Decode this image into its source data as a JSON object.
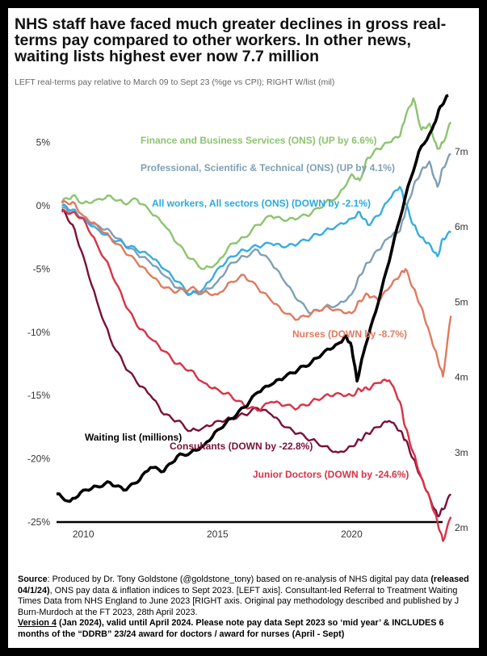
{
  "title": "NHS staff have faced much greater declines in gross real-terms pay compared to other workers. In other news, waiting lists highest ever now 7.7 million",
  "subtitle": "LEFT real-terms pay relative to March 09 to Sept 23 (%ge vs CPI); RIGHT W/list (mil)",
  "footer": {
    "source_label": "Source",
    "source_a": ": Produced by Dr. Tony Goldstone (@goldstone_tony) based on re-analysis of NHS digital pay data ",
    "source_b": "(released 04/1/24)",
    "source_c": ", ONS pay data & inflation indices to Sept 2023. [LEFT axis]. Consultant-led Referral to Treatment Waiting Times Data from NHS England to June 2023 [RIGHT axis. Original pay methodology described and published by J Burn-Murdoch at the FT 2023, 28th April 2023.",
    "version_label": "Version 4",
    "version_text": " (Jan 2024), valid until April 2024. Please note pay data Sept 2023 so ‘mid year’ & INCLUDES 6 months of the “DDRB” 23/24 award  for doctors / award for nurses (April - Sept)"
  },
  "colors": {
    "finance": "#8cc46e",
    "professional": "#7f9fb6",
    "all_workers": "#2aa9e0",
    "nurses": "#e07a5f",
    "consultants": "#7a1038",
    "junior": "#d93245",
    "waiting": "#000000"
  },
  "chart_data": {
    "type": "line",
    "title": "NHS staff have faced much greater declines in gross real-terms pay compared to other workers. In other news, waiting lists highest ever now 7.7 million",
    "x_ticks": [
      2010,
      2015,
      2020
    ],
    "xlim": [
      2009.0,
      2023.75
    ],
    "left_axis": {
      "label": "LEFT real-terms pay relative to March 09 to Sept 23 (%ge vs CPI)",
      "ylim": [
        -25,
        8
      ],
      "ticks": [
        5,
        0,
        -5,
        -10,
        -15,
        -20,
        -25
      ],
      "tick_labels": [
        "5%",
        "0%",
        "-5%",
        "-10%",
        "-15%",
        "-20%",
        "-25%"
      ]
    },
    "right_axis": {
      "label": "RIGHT W/list (mil)",
      "ylim": [
        1.95,
        8.1
      ],
      "ticks": [
        7,
        6,
        5,
        4,
        3,
        2
      ],
      "tick_labels": [
        "7m",
        "6m",
        "5m",
        "4m",
        "3m",
        "2m"
      ]
    },
    "series": [
      {
        "key": "finance",
        "name": "Finance and Business Services (ONS)",
        "label": "Finance and Business Services (ONS) (UP by 6.6%)",
        "axis": "left",
        "x": [
          2009.2,
          2009.6,
          2010.0,
          2010.5,
          2011.0,
          2011.5,
          2012.0,
          2012.5,
          2013.0,
          2013.5,
          2014.0,
          2014.5,
          2015.0,
          2015.5,
          2016.0,
          2016.5,
          2017.0,
          2017.5,
          2018.0,
          2018.5,
          2019.0,
          2019.5,
          2020.0,
          2020.3,
          2020.6,
          2021.0,
          2021.4,
          2021.8,
          2022.0,
          2022.3,
          2022.6,
          2022.9,
          2023.2,
          2023.4,
          2023.7
        ],
        "y": [
          0.3,
          0.8,
          0.2,
          0.5,
          0.8,
          0.2,
          0.5,
          -0.5,
          -1.5,
          -3.0,
          -4.2,
          -5.0,
          -4.5,
          -3.0,
          -2.5,
          -1.5,
          -0.8,
          -1.2,
          -1.0,
          -0.6,
          0.2,
          0.8,
          2.5,
          2.0,
          3.8,
          4.5,
          5.0,
          5.5,
          7.0,
          8.5,
          6.0,
          6.5,
          4.5,
          5.0,
          6.6
        ]
      },
      {
        "key": "professional",
        "name": "Professional, Scientific & Technical (ONS)",
        "label": "Professional, Scientific & Technical (ONS) (UP by 4.1%)",
        "axis": "left",
        "x": [
          2009.2,
          2009.6,
          2010.0,
          2010.5,
          2011.0,
          2011.5,
          2012.0,
          2012.5,
          2013.0,
          2013.5,
          2014.0,
          2014.5,
          2015.0,
          2015.5,
          2016.0,
          2016.5,
          2017.0,
          2017.5,
          2018.0,
          2018.5,
          2019.0,
          2019.5,
          2020.0,
          2020.3,
          2020.6,
          2021.0,
          2021.4,
          2021.8,
          2022.0,
          2022.3,
          2022.6,
          2022.9,
          2023.2,
          2023.4,
          2023.7
        ],
        "y": [
          -0.2,
          -0.5,
          -1.0,
          -1.5,
          -2.0,
          -3.0,
          -3.8,
          -4.5,
          -5.5,
          -6.5,
          -7.0,
          -6.8,
          -6.0,
          -4.5,
          -4.0,
          -3.5,
          -4.5,
          -6.0,
          -7.5,
          -8.5,
          -8.0,
          -7.8,
          -7.0,
          -5.5,
          -4.5,
          -3.5,
          -2.5,
          -2.0,
          -0.5,
          1.5,
          2.8,
          3.5,
          1.5,
          3.0,
          4.1
        ]
      },
      {
        "key": "all_workers",
        "name": "All workers, All sectors (ONS)",
        "label": "All workers, All sectors (ONS) (DOWN by -2.1%)",
        "axis": "left",
        "x": [
          2009.2,
          2009.6,
          2010.0,
          2010.5,
          2011.0,
          2011.5,
          2012.0,
          2012.5,
          2013.0,
          2013.5,
          2014.0,
          2014.5,
          2015.0,
          2015.5,
          2016.0,
          2016.5,
          2017.0,
          2017.5,
          2018.0,
          2018.5,
          2019.0,
          2019.5,
          2020.0,
          2020.3,
          2020.6,
          2021.0,
          2021.4,
          2021.8,
          2022.0,
          2022.3,
          2022.6,
          2022.9,
          2023.2,
          2023.4,
          2023.7
        ],
        "y": [
          0.0,
          -0.3,
          -1.0,
          -1.8,
          -2.5,
          -3.0,
          -3.5,
          -4.0,
          -5.0,
          -6.0,
          -7.0,
          -6.5,
          -5.0,
          -4.0,
          -3.5,
          -3.2,
          -3.0,
          -3.3,
          -3.0,
          -2.5,
          -2.0,
          -1.5,
          -1.0,
          -0.5,
          -1.5,
          -0.8,
          0.5,
          1.5,
          0.2,
          -1.5,
          -2.5,
          -3.0,
          -4.0,
          -2.6,
          -2.1
        ]
      },
      {
        "key": "nurses",
        "name": "Nurses",
        "label": "Nurses (DOWN by -8.7%)",
        "axis": "left",
        "x": [
          2009.2,
          2009.6,
          2010.0,
          2010.5,
          2011.0,
          2011.5,
          2012.0,
          2012.5,
          2013.0,
          2013.5,
          2014.0,
          2014.5,
          2015.0,
          2015.5,
          2016.0,
          2016.5,
          2017.0,
          2017.5,
          2018.0,
          2018.5,
          2019.0,
          2019.5,
          2020.0,
          2020.3,
          2020.6,
          2021.0,
          2021.4,
          2021.8,
          2022.0,
          2022.3,
          2022.6,
          2022.9,
          2023.2,
          2023.4,
          2023.7
        ],
        "y": [
          0.2,
          0.3,
          -0.8,
          -1.5,
          -2.5,
          -3.5,
          -4.5,
          -5.5,
          -6.5,
          -6.8,
          -6.5,
          -6.8,
          -7.0,
          -6.0,
          -5.5,
          -6.5,
          -7.5,
          -8.5,
          -9.0,
          -8.5,
          -8.0,
          -8.2,
          -8.5,
          -7.5,
          -7.0,
          -7.5,
          -6.5,
          -5.5,
          -5.0,
          -6.5,
          -8.0,
          -10.0,
          -12.0,
          -13.5,
          -8.7
        ]
      },
      {
        "key": "consultants",
        "name": "Consultants",
        "label": "Consultants (DOWN by -22.8%)",
        "axis": "left",
        "x": [
          2009.2,
          2009.6,
          2010.0,
          2010.5,
          2011.0,
          2011.5,
          2012.0,
          2012.5,
          2013.0,
          2013.5,
          2014.0,
          2014.5,
          2015.0,
          2015.5,
          2016.0,
          2016.5,
          2017.0,
          2017.5,
          2018.0,
          2018.5,
          2019.0,
          2019.5,
          2020.0,
          2020.3,
          2020.6,
          2021.0,
          2021.4,
          2021.8,
          2022.0,
          2022.3,
          2022.6,
          2022.9,
          2023.2,
          2023.4,
          2023.7
        ],
        "y": [
          -0.3,
          -1.5,
          -4.0,
          -7.5,
          -10.5,
          -12.5,
          -14.0,
          -15.0,
          -16.5,
          -17.0,
          -17.8,
          -17.5,
          -17.0,
          -16.8,
          -16.5,
          -16.0,
          -16.5,
          -17.5,
          -18.0,
          -18.5,
          -19.0,
          -19.5,
          -19.0,
          -18.5,
          -18.0,
          -17.5,
          -17.0,
          -17.8,
          -18.5,
          -20.0,
          -21.5,
          -23.0,
          -24.5,
          -24.0,
          -22.8
        ]
      },
      {
        "key": "junior",
        "name": "Junior Doctors",
        "label": "Junior Doctors (DOWN by -24.6%)",
        "axis": "left",
        "x": [
          2009.2,
          2009.6,
          2010.0,
          2010.5,
          2011.0,
          2011.5,
          2012.0,
          2012.5,
          2013.0,
          2013.5,
          2014.0,
          2014.5,
          2015.0,
          2015.5,
          2016.0,
          2016.5,
          2017.0,
          2017.5,
          2018.0,
          2018.5,
          2019.0,
          2019.5,
          2020.0,
          2020.3,
          2020.6,
          2021.0,
          2021.4,
          2021.8,
          2022.0,
          2022.3,
          2022.6,
          2022.9,
          2023.2,
          2023.4,
          2023.7
        ],
        "y": [
          -0.5,
          -0.5,
          -1.0,
          -3.0,
          -5.0,
          -7.5,
          -9.5,
          -10.5,
          -11.5,
          -12.5,
          -13.0,
          -14.0,
          -14.5,
          -15.0,
          -15.8,
          -16.2,
          -15.5,
          -15.8,
          -16.0,
          -15.5,
          -15.0,
          -14.8,
          -15.0,
          -14.5,
          -14.5,
          -14.0,
          -13.8,
          -15.5,
          -17.5,
          -19.5,
          -21.5,
          -23.0,
          -25.0,
          -26.5,
          -24.6
        ]
      },
      {
        "key": "waiting",
        "name": "Waiting list (millions)",
        "label": "Waiting list (millions)",
        "axis": "right",
        "x": [
          2009.0,
          2009.5,
          2010.0,
          2010.5,
          2011.0,
          2011.5,
          2012.0,
          2012.5,
          2013.0,
          2013.5,
          2014.0,
          2014.5,
          2015.0,
          2015.5,
          2016.0,
          2016.5,
          2017.0,
          2017.5,
          2018.0,
          2018.5,
          2019.0,
          2019.5,
          2019.8,
          2020.0,
          2020.2,
          2020.5,
          2021.0,
          2021.5,
          2022.0,
          2022.5,
          2023.0,
          2023.3,
          2023.6
        ],
        "y": [
          2.45,
          2.35,
          2.5,
          2.55,
          2.6,
          2.5,
          2.6,
          2.8,
          2.75,
          2.95,
          3.0,
          3.1,
          3.3,
          3.45,
          3.6,
          3.8,
          3.9,
          4.0,
          4.1,
          4.2,
          4.35,
          4.45,
          4.55,
          4.4,
          3.95,
          4.4,
          5.0,
          5.7,
          6.4,
          7.0,
          7.3,
          7.6,
          7.75
        ]
      }
    ],
    "reference_line": {
      "axis": "left",
      "y": -25
    }
  }
}
